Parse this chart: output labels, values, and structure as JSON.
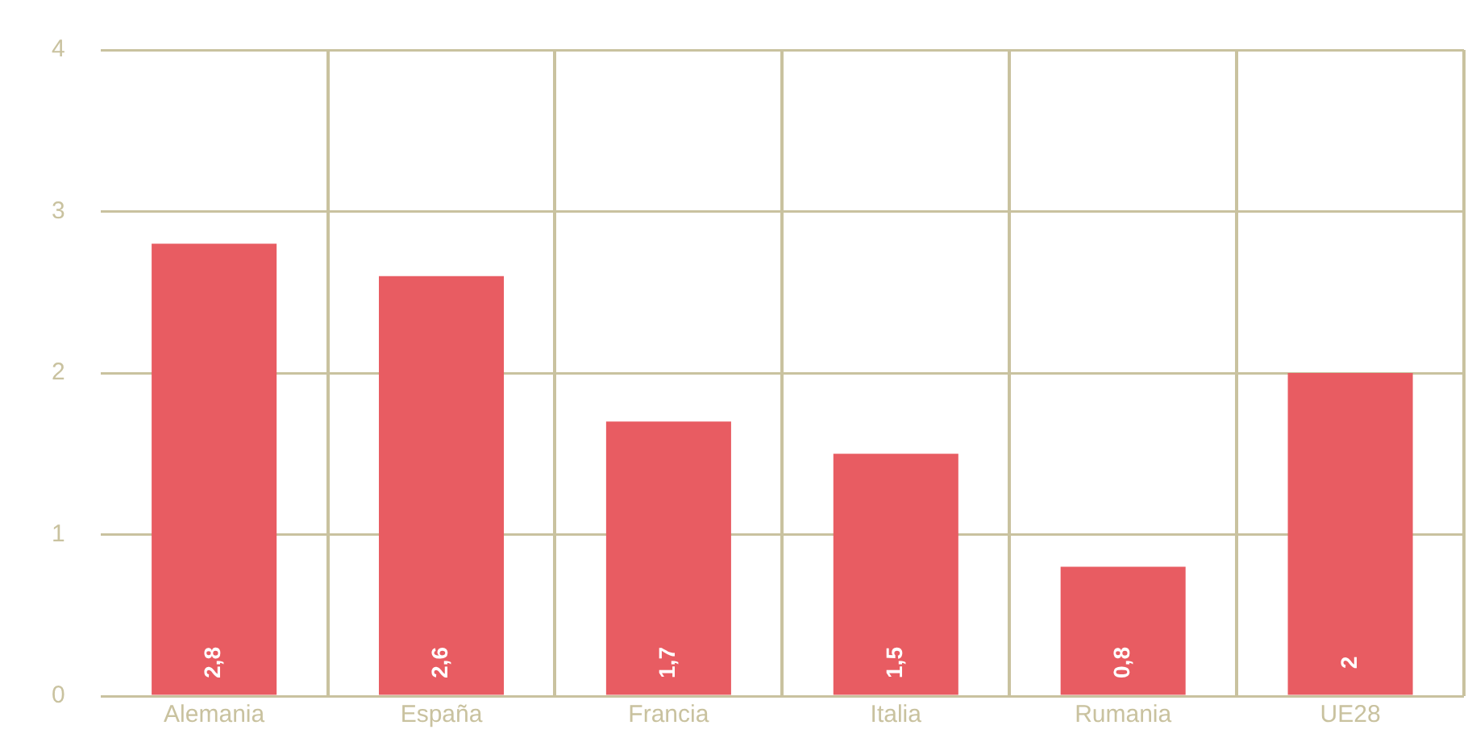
{
  "chart_data": {
    "type": "bar",
    "categories": [
      "Alemania",
      "España",
      "Francia",
      "Italia",
      "Rumania",
      "UE28"
    ],
    "values": [
      2.8,
      2.6,
      1.7,
      1.5,
      0.8,
      2
    ],
    "value_labels": [
      "2,8",
      "2,6",
      "1,7",
      "1,5",
      "0,8",
      "2"
    ],
    "color": "#e85c62",
    "ylim": [
      0,
      4
    ],
    "yticks": [
      0,
      1,
      2,
      3,
      4
    ],
    "grid": true,
    "legend": false
  }
}
